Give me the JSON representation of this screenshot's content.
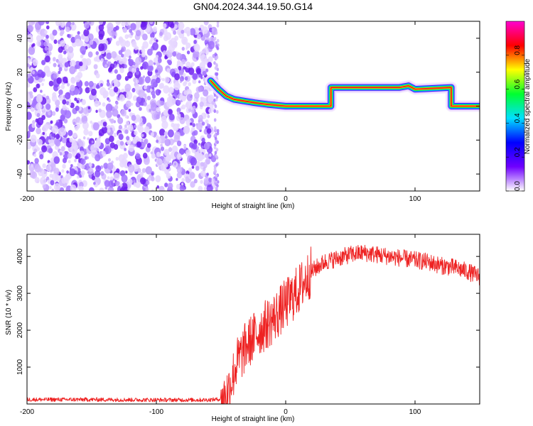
{
  "figure_title": "GN04.2024.344.19.50.G14",
  "chart_data": [
    {
      "type": "heatmap",
      "xlabel": "Height of straight line (km)",
      "ylabel": "Frequency (Hz)",
      "xlim": [
        -200,
        150
      ],
      "ylim": [
        -50,
        50
      ],
      "x_ticks": [
        "-200",
        "-100",
        "0",
        "100"
      ],
      "y_ticks": [
        "-40",
        "-20",
        "0",
        "20",
        "40"
      ],
      "grid": false,
      "noise_region": {
        "x": [
          -200,
          -55
        ],
        "y": [
          -50,
          50
        ],
        "amplitude": [
          0.0,
          0.3
        ]
      },
      "signal_ridge": [
        {
          "x": -58,
          "y": 15
        },
        {
          "x": -52,
          "y": 10
        },
        {
          "x": -46,
          "y": 6
        },
        {
          "x": -40,
          "y": 4
        },
        {
          "x": -32,
          "y": 3
        },
        {
          "x": -24,
          "y": 2
        },
        {
          "x": -14,
          "y": 1
        },
        {
          "x": 0,
          "y": 0
        },
        {
          "x": 15,
          "y": 0
        },
        {
          "x": 35,
          "y": 0
        },
        {
          "x": 35,
          "y": 11
        },
        {
          "x": 60,
          "y": 11
        },
        {
          "x": 88,
          "y": 11
        },
        {
          "x": 95,
          "y": 12
        },
        {
          "x": 100,
          "y": 10
        },
        {
          "x": 128,
          "y": 11
        },
        {
          "x": 128,
          "y": 0
        },
        {
          "x": 150,
          "y": 0
        }
      ],
      "colorbar": {
        "label": "Normalized spectral amplitude",
        "ticks": [
          "0.0",
          "0.2",
          "0.4",
          "0.6",
          "0.8"
        ],
        "range": [
          0,
          1
        ],
        "colors": [
          "#ffffff",
          "#6f00ff",
          "#0000ff",
          "#00e0ff",
          "#00ff30",
          "#ffff00",
          "#ff0000",
          "#ff00d0"
        ]
      }
    },
    {
      "type": "line",
      "xlabel": "Height of straight line (km)",
      "ylabel": "SNR (10 * v/v)",
      "xlim": [
        -200,
        150
      ],
      "ylim": [
        0,
        4600
      ],
      "x_ticks": [
        "-200",
        "-100",
        "0",
        "100"
      ],
      "y_ticks": [
        "1000",
        "2000",
        "3000",
        "4000"
      ],
      "grid": false,
      "color": "#ee2222",
      "series_trend": [
        {
          "x": -200,
          "y": 120
        },
        {
          "x": -150,
          "y": 120
        },
        {
          "x": -100,
          "y": 110
        },
        {
          "x": -60,
          "y": 110
        },
        {
          "x": -47,
          "y": 140
        },
        {
          "x": -43,
          "y": 500
        },
        {
          "x": -38,
          "y": 1100
        },
        {
          "x": -30,
          "y": 1600
        },
        {
          "x": -20,
          "y": 2000
        },
        {
          "x": -10,
          "y": 2300
        },
        {
          "x": 0,
          "y": 2700
        },
        {
          "x": 10,
          "y": 3100
        },
        {
          "x": 20,
          "y": 3600
        },
        {
          "x": 30,
          "y": 3850
        },
        {
          "x": 40,
          "y": 3950
        },
        {
          "x": 50,
          "y": 4050
        },
        {
          "x": 60,
          "y": 4100
        },
        {
          "x": 70,
          "y": 4050
        },
        {
          "x": 80,
          "y": 4000
        },
        {
          "x": 90,
          "y": 3950
        },
        {
          "x": 100,
          "y": 3900
        },
        {
          "x": 110,
          "y": 3850
        },
        {
          "x": 120,
          "y": 3750
        },
        {
          "x": 130,
          "y": 3700
        },
        {
          "x": 140,
          "y": 3600
        },
        {
          "x": 150,
          "y": 3450
        }
      ]
    }
  ]
}
